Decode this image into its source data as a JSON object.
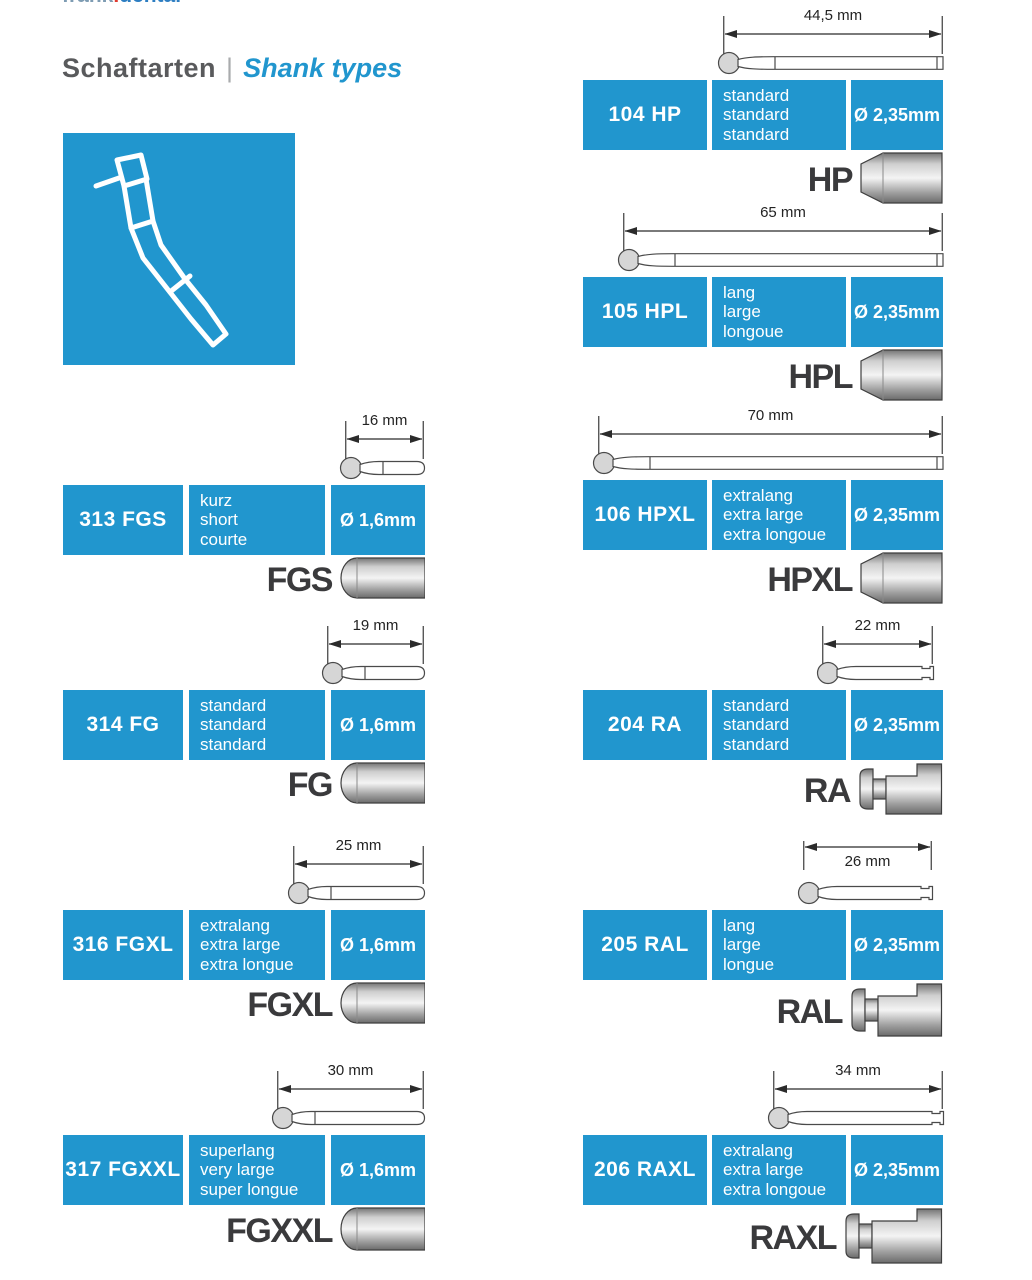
{
  "logo": {
    "part1": "frank",
    "dot": ".",
    "part2": "dental"
  },
  "header": {
    "title_de": "Schaftarten",
    "separator": "|",
    "title_en": "Shank types"
  },
  "colors": {
    "accent_blue": "#2196ce",
    "label_gray": "#3a3a3c",
    "title_gray": "#595a5c"
  },
  "icons": {
    "illustration": "dental-handpiece-icon",
    "dimension": "dimension-arrow",
    "drawing": "bur-drawing"
  },
  "entries": [
    {
      "code": "104 HP",
      "lines": [
        "standard",
        "standard",
        "standard"
      ],
      "diameter": "Ø 2,35mm",
      "length": "44,5 mm",
      "shank_label": "HP"
    },
    {
      "code": "105 HPL",
      "lines": [
        "lang",
        "large",
        "longoue"
      ],
      "diameter": "Ø 2,35mm",
      "length": "65 mm",
      "shank_label": "HPL"
    },
    {
      "code": "106 HPXL",
      "lines": [
        "extralang",
        "extra large",
        "extra longoue"
      ],
      "diameter": "Ø 2,35mm",
      "length": "70 mm",
      "shank_label": "HPXL"
    },
    {
      "code": "313 FGS",
      "lines": [
        "kurz",
        "short",
        "courte"
      ],
      "diameter": "Ø 1,6mm",
      "length": "16 mm",
      "shank_label": "FGS"
    },
    {
      "code": "314 FG",
      "lines": [
        "standard",
        "standard",
        "standard"
      ],
      "diameter": "Ø 1,6mm",
      "length": "19 mm",
      "shank_label": "FG"
    },
    {
      "code": "316 FGXL",
      "lines": [
        "extralang",
        "extra large",
        "extra longue"
      ],
      "diameter": "Ø 1,6mm",
      "length": "25 mm",
      "shank_label": "FGXL"
    },
    {
      "code": "317 FGXXL",
      "lines": [
        "superlang",
        "very large",
        "super longue"
      ],
      "diameter": "Ø 1,6mm",
      "length": "30 mm",
      "shank_label": "FGXXL"
    },
    {
      "code": "204 RA",
      "lines": [
        "standard",
        "standard",
        "standard"
      ],
      "diameter": "Ø 2,35mm",
      "length": "22 mm",
      "shank_label": "RA"
    },
    {
      "code": "205 RAL",
      "lines": [
        "lang",
        "large",
        "longue"
      ],
      "diameter": "Ø 2,35mm",
      "length": "26 mm",
      "shank_label": "RAL"
    },
    {
      "code": "206 RAXL",
      "lines": [
        "extralang",
        "extra large",
        "extra longoue"
      ],
      "diameter": "Ø 2,35mm",
      "length": "34 mm",
      "shank_label": "RAXL"
    }
  ]
}
